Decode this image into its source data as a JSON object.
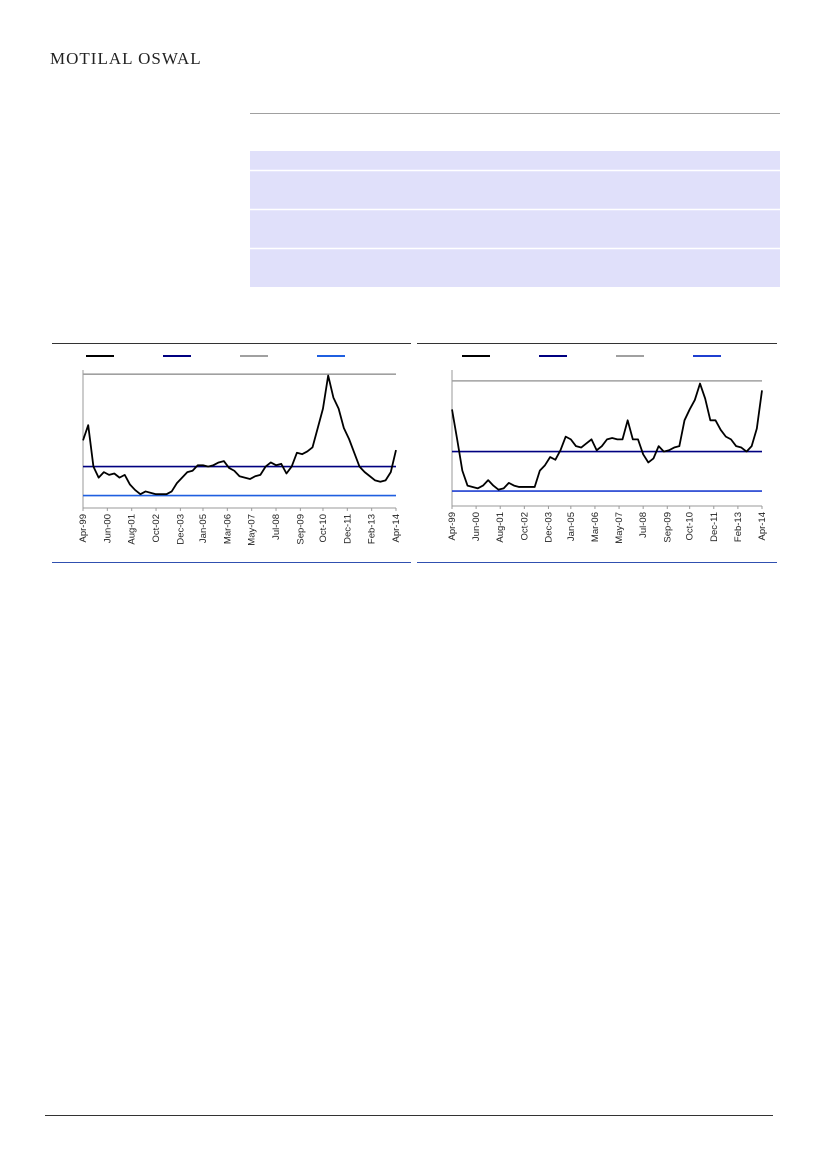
{
  "header": {
    "logo": "MOTILAL OSWAL"
  },
  "chart_data": [
    {
      "type": "line",
      "x": [
        0,
        3,
        6,
        9,
        12,
        15,
        18,
        21,
        24,
        27,
        30,
        33,
        36,
        39,
        42,
        45,
        48,
        51,
        54,
        57,
        60,
        63,
        66,
        69,
        72,
        75,
        78,
        81,
        84,
        87,
        90,
        93,
        96,
        99,
        102,
        105,
        108,
        111,
        114,
        117,
        120,
        123,
        126,
        129,
        132,
        135,
        138,
        141,
        144,
        147,
        150,
        153,
        156,
        159,
        162,
        165,
        168,
        171,
        174,
        177,
        180
      ],
      "xlim": [
        0,
        180
      ],
      "xticks": [
        {
          "value": 0,
          "label": "Apr-99"
        },
        {
          "value": 14,
          "label": "Jun-00"
        },
        {
          "value": 28,
          "label": "Aug-01"
        },
        {
          "value": 42,
          "label": "Oct-02"
        },
        {
          "value": 56,
          "label": "Dec-03"
        },
        {
          "value": 69,
          "label": "Jan-05"
        },
        {
          "value": 83,
          "label": "Mar-06"
        },
        {
          "value": 97,
          "label": "May-07"
        },
        {
          "value": 111,
          "label": "Jul-08"
        },
        {
          "value": 125,
          "label": "Sep-09"
        },
        {
          "value": 138,
          "label": "Oct-10"
        },
        {
          "value": 152,
          "label": "Dec-11"
        },
        {
          "value": 166,
          "label": "Feb-13"
        },
        {
          "value": 180,
          "label": "Apr-14"
        }
      ],
      "ylim": [
        0,
        100
      ],
      "series": [
        {
          "color": "#000000",
          "values": [
            49,
            60,
            30,
            22,
            26,
            24,
            25,
            22,
            24,
            17,
            13,
            10,
            12,
            11,
            10,
            10,
            10,
            12,
            18,
            22,
            26,
            27,
            31,
            31,
            30,
            31,
            33,
            34,
            29,
            27,
            23,
            22,
            21,
            23,
            24,
            30,
            33,
            31,
            32,
            25,
            30,
            40,
            39,
            41,
            44,
            58,
            72,
            96,
            80,
            72,
            58,
            50,
            40,
            30,
            26,
            23,
            20,
            19,
            20,
            26,
            42
          ]
        }
      ],
      "hlines": [
        {
          "color": "#000080",
          "value": 30
        },
        {
          "color": "#a0a0a0",
          "value": 97
        },
        {
          "color": "#1f5fe0",
          "value": 9
        }
      ]
    },
    {
      "type": "line",
      "x": [
        0,
        3,
        6,
        9,
        12,
        15,
        18,
        21,
        24,
        27,
        30,
        33,
        36,
        39,
        42,
        45,
        48,
        51,
        54,
        57,
        60,
        63,
        66,
        69,
        72,
        75,
        78,
        81,
        84,
        87,
        90,
        93,
        96,
        99,
        102,
        105,
        108,
        111,
        114,
        117,
        120,
        123,
        126,
        129,
        132,
        135,
        138,
        141,
        144,
        147,
        150,
        153,
        156,
        159,
        162,
        165,
        168,
        171,
        174,
        177,
        180
      ],
      "xlim": [
        0,
        180
      ],
      "xticks": [
        {
          "value": 0,
          "label": "Apr-99"
        },
        {
          "value": 14,
          "label": "Jun-00"
        },
        {
          "value": 28,
          "label": "Aug-01"
        },
        {
          "value": 42,
          "label": "Oct-02"
        },
        {
          "value": 56,
          "label": "Dec-03"
        },
        {
          "value": 69,
          "label": "Jan-05"
        },
        {
          "value": 83,
          "label": "Mar-06"
        },
        {
          "value": 97,
          "label": "May-07"
        },
        {
          "value": 111,
          "label": "Jul-08"
        },
        {
          "value": 125,
          "label": "Sep-09"
        },
        {
          "value": 138,
          "label": "Oct-10"
        },
        {
          "value": 152,
          "label": "Dec-11"
        },
        {
          "value": 166,
          "label": "Feb-13"
        },
        {
          "value": 180,
          "label": "Apr-14"
        }
      ],
      "ylim": [
        0,
        100
      ],
      "series": [
        {
          "color": "#000000",
          "values": [
            71,
            49,
            26,
            15,
            14,
            13,
            15,
            19,
            15,
            12,
            13,
            17,
            15,
            14,
            14,
            14,
            14,
            26,
            30,
            36,
            34,
            41,
            51,
            49,
            44,
            43,
            46,
            49,
            41,
            44,
            49,
            50,
            49,
            49,
            63,
            49,
            49,
            38,
            32,
            35,
            44,
            40,
            41,
            43,
            44,
            63,
            71,
            78,
            90,
            79,
            63,
            63,
            56,
            51,
            49,
            44,
            43,
            40,
            44,
            57,
            85
          ]
        }
      ],
      "hlines": [
        {
          "color": "#000080",
          "value": 40
        },
        {
          "color": "#a0a0a0",
          "value": 92
        },
        {
          "color": "#1f3fd0",
          "value": 11
        }
      ]
    }
  ]
}
